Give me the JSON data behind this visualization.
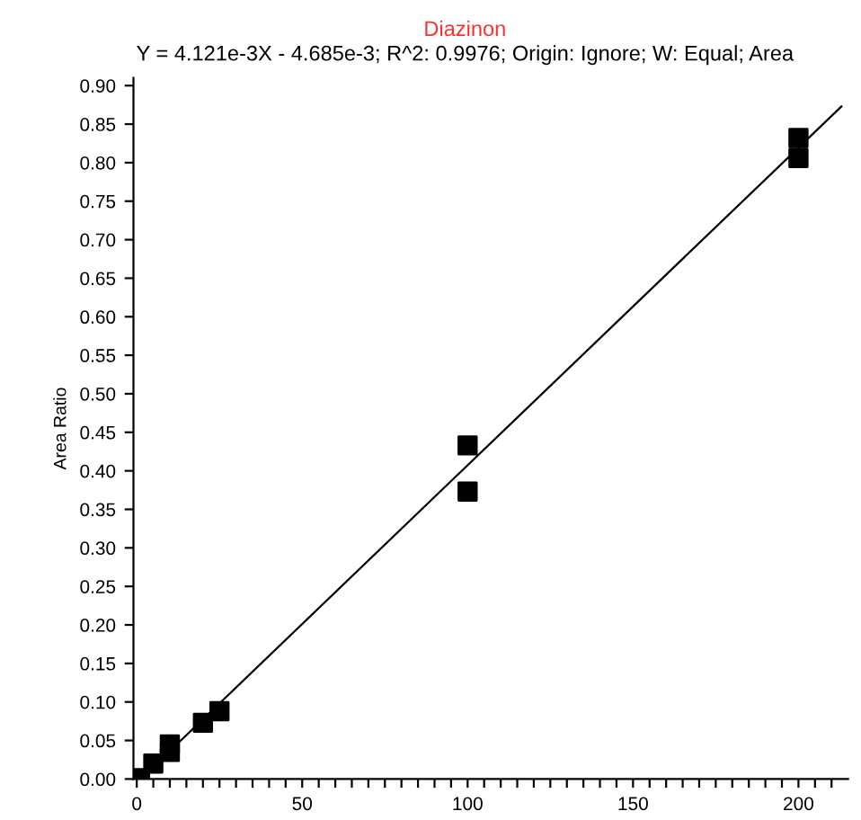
{
  "chart_data": {
    "type": "scatter",
    "title": "Diazinon",
    "subtitle": "Y = 4.121e-3X - 4.685e-3; R^2: 0.9976; Origin: Ignore; W: Equal; Area",
    "ylabel": "Area Ratio",
    "series": [
      {
        "color": "#000000",
        "marker": "square",
        "x": [
          1,
          5,
          10,
          10,
          20,
          25,
          100,
          100,
          200,
          200
        ],
        "values": [
          0.001,
          0.02,
          0.035,
          0.045,
          0.073,
          0.088,
          0.433,
          0.373,
          0.832,
          0.806
        ]
      },
      {
        "type": "line",
        "color": "#000000",
        "marker": "none",
        "x": [
          1.2,
          213
        ],
        "values": [
          0.0,
          0.873
        ]
      }
    ],
    "xlim": [
      -1,
      215
    ],
    "ylim": [
      0,
      0.91
    ],
    "xticks": [
      0,
      {
        "value": 5,
        "label": null
      },
      {
        "value": 10,
        "label": null
      },
      {
        "value": 15,
        "label": null
      },
      {
        "value": 20,
        "label": null
      },
      {
        "value": 25,
        "label": null
      },
      {
        "value": 30,
        "label": null
      },
      {
        "value": 35,
        "label": null
      },
      {
        "value": 40,
        "label": null
      },
      {
        "value": 45,
        "label": null
      },
      50,
      {
        "value": 55,
        "label": null
      },
      {
        "value": 60,
        "label": null
      },
      {
        "value": 65,
        "label": null
      },
      {
        "value": 70,
        "label": null
      },
      {
        "value": 75,
        "label": null
      },
      {
        "value": 80,
        "label": null
      },
      {
        "value": 85,
        "label": null
      },
      {
        "value": 90,
        "label": null
      },
      {
        "value": 95,
        "label": null
      },
      100,
      {
        "value": 105,
        "label": null
      },
      {
        "value": 110,
        "label": null
      },
      {
        "value": 115,
        "label": null
      },
      {
        "value": 120,
        "label": null
      },
      {
        "value": 125,
        "label": null
      },
      {
        "value": 130,
        "label": null
      },
      {
        "value": 135,
        "label": null
      },
      {
        "value": 140,
        "label": null
      },
      {
        "value": 145,
        "label": null
      },
      150,
      {
        "value": 155,
        "label": null
      },
      {
        "value": 160,
        "label": null
      },
      {
        "value": 165,
        "label": null
      },
      {
        "value": 170,
        "label": null
      },
      {
        "value": 175,
        "label": null
      },
      {
        "value": 180,
        "label": null
      },
      {
        "value": 185,
        "label": null
      },
      {
        "value": 190,
        "label": null
      },
      {
        "value": 195,
        "label": null
      },
      200,
      {
        "value": 205,
        "label": null
      },
      {
        "value": 210,
        "label": null
      }
    ],
    "yticks": [
      {
        "value": 0,
        "label": "0.00"
      },
      {
        "value": 0.05,
        "label": "0.05"
      },
      {
        "value": 0.1,
        "label": "0.10"
      },
      {
        "value": 0.15,
        "label": "0.15"
      },
      {
        "value": 0.2,
        "label": "0.20"
      },
      {
        "value": 0.25,
        "label": "0.25"
      },
      {
        "value": 0.3,
        "label": "0.30"
      },
      {
        "value": 0.35,
        "label": "0.35"
      },
      {
        "value": 0.4,
        "label": "0.40"
      },
      {
        "value": 0.45,
        "label": "0.45"
      },
      {
        "value": 0.5,
        "label": "0.50"
      },
      {
        "value": 0.55,
        "label": "0.55"
      },
      {
        "value": 0.6,
        "label": "0.60"
      },
      {
        "value": 0.65,
        "label": "0.65"
      },
      {
        "value": 0.7,
        "label": "0.70"
      },
      {
        "value": 0.75,
        "label": "0.75"
      },
      {
        "value": 0.8,
        "label": "0.80"
      },
      {
        "value": 0.85,
        "label": "0.85"
      },
      {
        "value": 0.9,
        "label": "0.90"
      }
    ],
    "grid": false,
    "legend": false
  }
}
